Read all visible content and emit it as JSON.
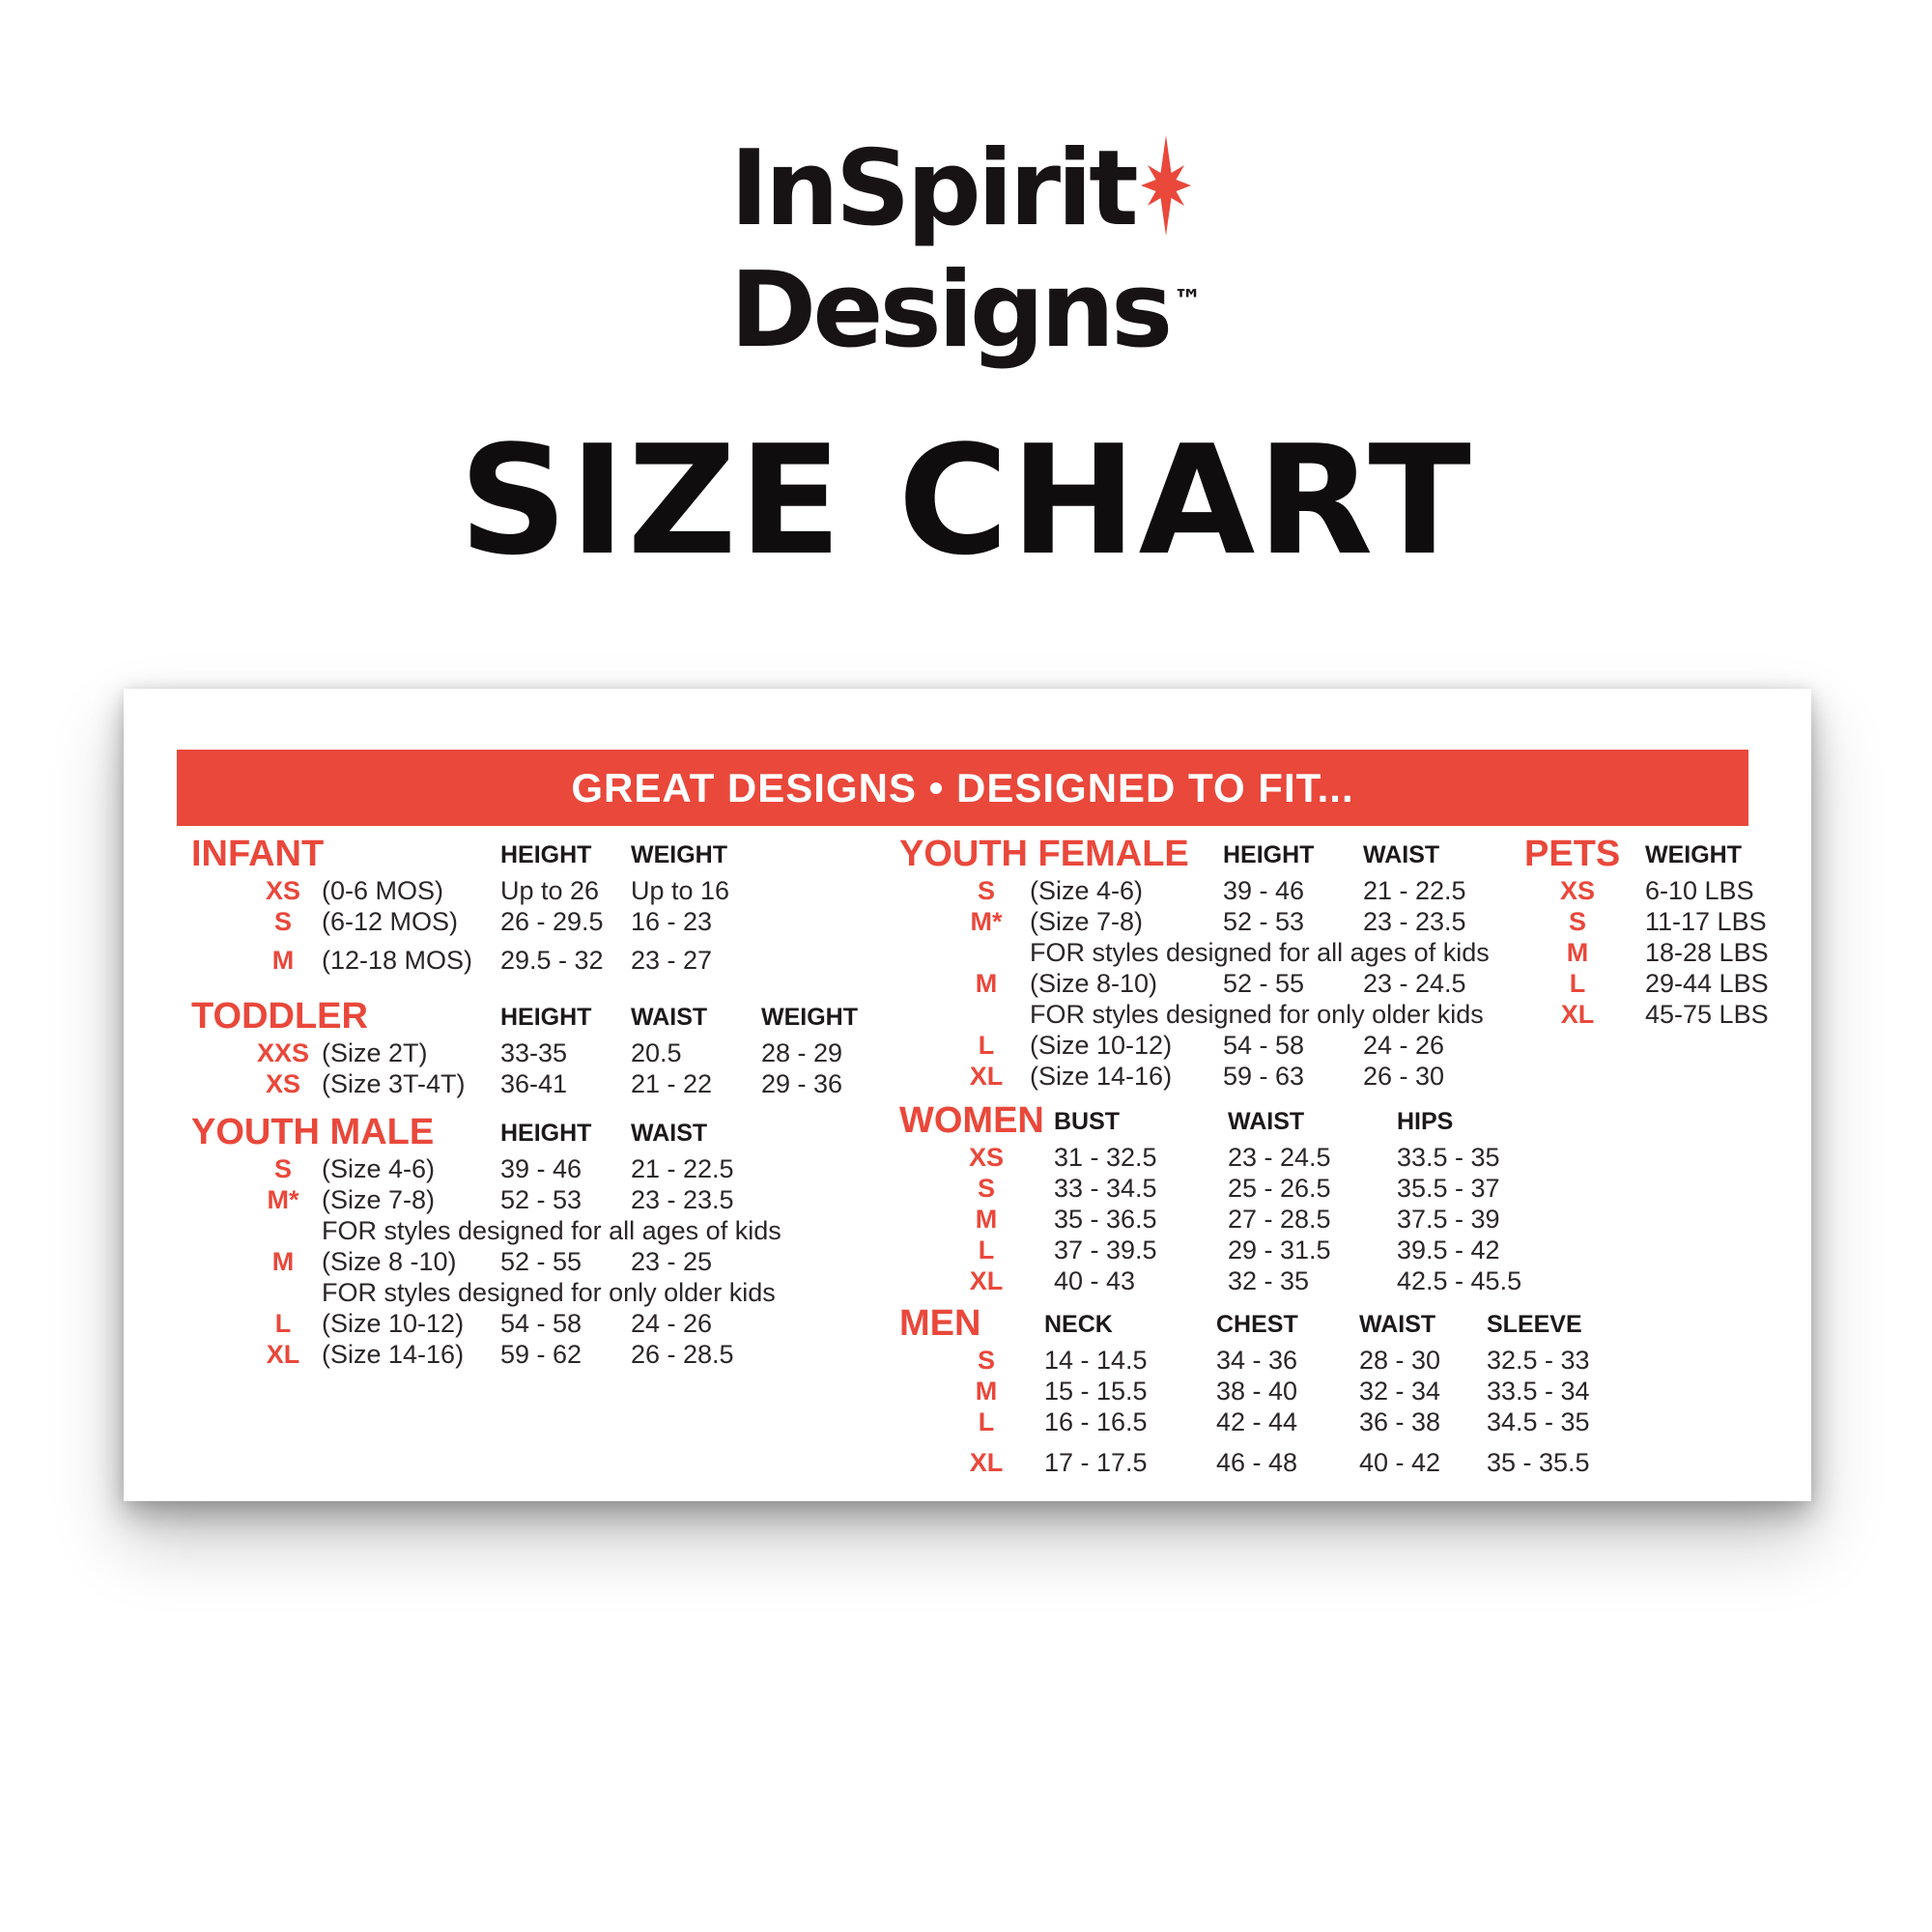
{
  "logo": {
    "line1": "InSpirit",
    "line2": "Designs",
    "tm": "TM",
    "star_color": "#e9483b"
  },
  "page_title": "SIZE CHART",
  "banner": {
    "text": "GREAT DESIGNS • DESIGNED TO FIT...",
    "bg_color": "#e9483b",
    "text_color": "#ffffff"
  },
  "colors": {
    "accent_red": "#e9483b",
    "text_black": "#2b2627"
  },
  "sections": {
    "infant": {
      "title": "INFANT",
      "columns": [
        "HEIGHT",
        "WEIGHT"
      ],
      "rows": [
        {
          "size": "XS",
          "desc": "(0-6 MOS)",
          "values": [
            "Up to 26",
            "Up to 16"
          ]
        },
        {
          "size": "S",
          "desc": "(6-12 MOS)",
          "values": [
            "26 - 29.5",
            "16 - 23"
          ]
        },
        {
          "size": "M",
          "desc": "(12-18 MOS)",
          "values": [
            "29.5 - 32",
            "23 - 27"
          ]
        }
      ]
    },
    "toddler": {
      "title": "TODDLER",
      "columns": [
        "HEIGHT",
        "WAIST",
        "WEIGHT"
      ],
      "rows": [
        {
          "size": "XXS",
          "desc": "(Size 2T)",
          "values": [
            "33-35",
            "20.5",
            "28 - 29"
          ]
        },
        {
          "size": "XS",
          "desc": "(Size 3T-4T)",
          "values": [
            "36-41",
            "21 - 22",
            "29 - 36"
          ]
        }
      ]
    },
    "youth_male": {
      "title": "YOUTH MALE",
      "columns": [
        "HEIGHT",
        "WAIST"
      ],
      "rows": [
        {
          "size": "S",
          "desc": "(Size 4-6)",
          "values": [
            "39 - 46",
            "21 - 22.5"
          ]
        },
        {
          "size": "M*",
          "desc": "(Size 7-8)",
          "values": [
            "52 - 53",
            "23 - 23.5"
          ]
        },
        {
          "note": "FOR styles designed for all ages of kids"
        },
        {
          "size": "M",
          "desc": "(Size 8 -10)",
          "values": [
            "52 - 55",
            "23 - 25"
          ]
        },
        {
          "note": "FOR styles designed for only older kids"
        },
        {
          "size": "L",
          "desc": "(Size 10-12)",
          "values": [
            "54 - 58",
            "24 - 26"
          ]
        },
        {
          "size": "XL",
          "desc": "(Size 14-16)",
          "values": [
            "59 - 62",
            "26 - 28.5"
          ]
        }
      ]
    },
    "youth_female": {
      "title": "YOUTH FEMALE",
      "columns": [
        "HEIGHT",
        "WAIST"
      ],
      "rows": [
        {
          "size": "S",
          "desc": "(Size 4-6)",
          "values": [
            "39 - 46",
            "21 - 22.5"
          ]
        },
        {
          "size": "M*",
          "desc": "(Size 7-8)",
          "values": [
            "52 - 53",
            "23 - 23.5"
          ]
        },
        {
          "note": "FOR styles designed for all ages of kids"
        },
        {
          "size": "M",
          "desc": "(Size 8-10)",
          "values": [
            "52 - 55",
            "23 - 24.5"
          ]
        },
        {
          "note": "FOR styles designed for only older kids"
        },
        {
          "size": "L",
          "desc": "(Size 10-12)",
          "values": [
            "54 - 58",
            "24 - 26"
          ]
        },
        {
          "size": "XL",
          "desc": "(Size 14-16)",
          "values": [
            "59 - 63",
            "26 - 30"
          ]
        }
      ]
    },
    "women": {
      "title": "WOMEN",
      "columns": [
        "BUST",
        "WAIST",
        "HIPS"
      ],
      "rows": [
        {
          "size": "XS",
          "values": [
            "31 - 32.5",
            "23 - 24.5",
            "33.5 - 35"
          ]
        },
        {
          "size": "S",
          "values": [
            "33 - 34.5",
            "25 - 26.5",
            "35.5 - 37"
          ]
        },
        {
          "size": "M",
          "values": [
            "35 - 36.5",
            "27 - 28.5",
            "37.5 - 39"
          ]
        },
        {
          "size": "L",
          "values": [
            "37 - 39.5",
            "29 - 31.5",
            "39.5 - 42"
          ]
        },
        {
          "size": "XL",
          "values": [
            "40 - 43",
            "32 - 35",
            "42.5 - 45.5"
          ]
        }
      ]
    },
    "men": {
      "title": "MEN",
      "columns": [
        "NECK",
        "CHEST",
        "WAIST",
        "SLEEVE"
      ],
      "rows": [
        {
          "size": "S",
          "values": [
            "14 - 14.5",
            "34 - 36",
            "28 - 30",
            "32.5 - 33"
          ]
        },
        {
          "size": "M",
          "values": [
            "15 - 15.5",
            "38 - 40",
            "32 - 34",
            "33.5 - 34"
          ]
        },
        {
          "size": "L",
          "values": [
            "16 - 16.5",
            "42 - 44",
            "36 - 38",
            "34.5 - 35"
          ]
        },
        {
          "size": "XL",
          "values": [
            "17 - 17.5",
            "46 - 48",
            "40 - 42",
            "35 - 35.5"
          ]
        }
      ]
    },
    "pets": {
      "title": "PETS",
      "columns": [
        "WEIGHT"
      ],
      "rows": [
        {
          "size": "XS",
          "values": [
            "6-10 LBS"
          ]
        },
        {
          "size": "S",
          "values": [
            "11-17 LBS"
          ]
        },
        {
          "size": "M",
          "values": [
            "18-28 LBS"
          ]
        },
        {
          "size": "L",
          "values": [
            "29-44 LBS"
          ]
        },
        {
          "size": "XL",
          "values": [
            "45-75 LBS"
          ]
        }
      ]
    }
  }
}
